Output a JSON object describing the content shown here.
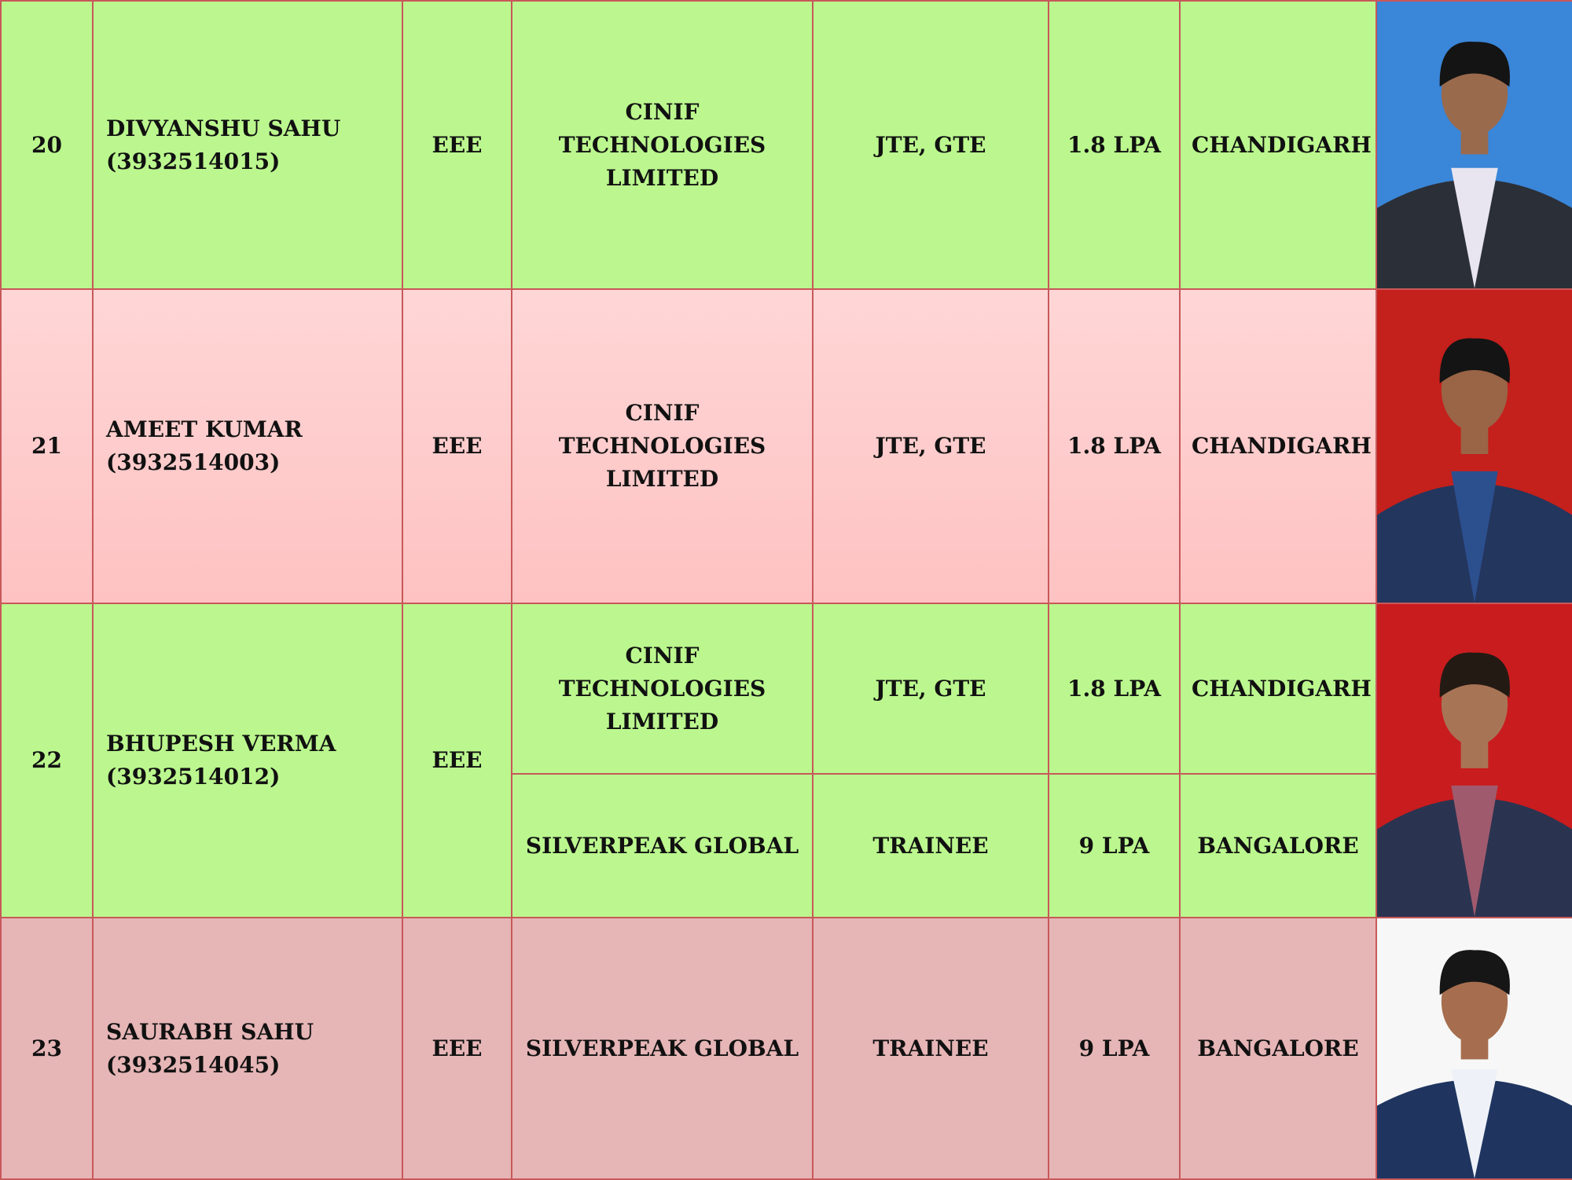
{
  "rows": [
    {
      "sno": "20",
      "name": "DIVYANSHU SAHU",
      "roll": "(3932514015)",
      "branch": "EEE",
      "offers": [
        {
          "company_l1": "CINIF TECHNOLOGIES",
          "company_l2": "LIMITED",
          "designation": "JTE, GTE",
          "package": "1.8 LPA",
          "location": "CHANDIGARH"
        }
      ],
      "photo": {
        "bg": "#3a86d8",
        "suit": "#2b2f37",
        "shirt": "#e8e4f0",
        "skin": "#9a6a4c",
        "hair": "#141414"
      }
    },
    {
      "sno": "21",
      "name": "AMEET KUMAR",
      "roll": "(3932514003)",
      "branch": "EEE",
      "offers": [
        {
          "company_l1": "CINIF TECHNOLOGIES",
          "company_l2": "LIMITED",
          "designation": "JTE, GTE",
          "package": "1.8 LPA",
          "location": "CHANDIGARH"
        }
      ],
      "photo": {
        "bg": "#c4201c",
        "suit": "#23365e",
        "shirt": "#2c4f8e",
        "skin": "#9a6446",
        "hair": "#141414"
      }
    },
    {
      "sno": "22",
      "name": "BHUPESH VERMA",
      "roll": "(3932514012)",
      "branch": "EEE",
      "offers": [
        {
          "company_l1": "CINIF TECHNOLOGIES",
          "company_l2": "LIMITED",
          "designation": "JTE, GTE",
          "package": "1.8 LPA",
          "location": "CHANDIGARH"
        },
        {
          "company_l1": "SILVERPEAK GLOBAL",
          "company_l2": "",
          "designation": "TRAINEE",
          "package": "9 LPA",
          "location": "BANGALORE"
        }
      ],
      "photo": {
        "bg": "#c91c1e",
        "suit": "#2a3450",
        "shirt": "#a05a6e",
        "skin": "#a87456",
        "hair": "#241a14"
      }
    },
    {
      "sno": "23",
      "name": "SAURABH SAHU",
      "roll": "(3932514045)",
      "branch": "EEE",
      "offers": [
        {
          "company_l1": "SILVERPEAK GLOBAL",
          "company_l2": "",
          "designation": "TRAINEE",
          "package": "9 LPA",
          "location": "BANGALORE"
        }
      ],
      "photo": {
        "bg": "#f7f7f7",
        "suit": "#1f3560",
        "shirt": "#eef2f8",
        "skin": "#a66e4e",
        "hair": "#161616"
      }
    }
  ]
}
